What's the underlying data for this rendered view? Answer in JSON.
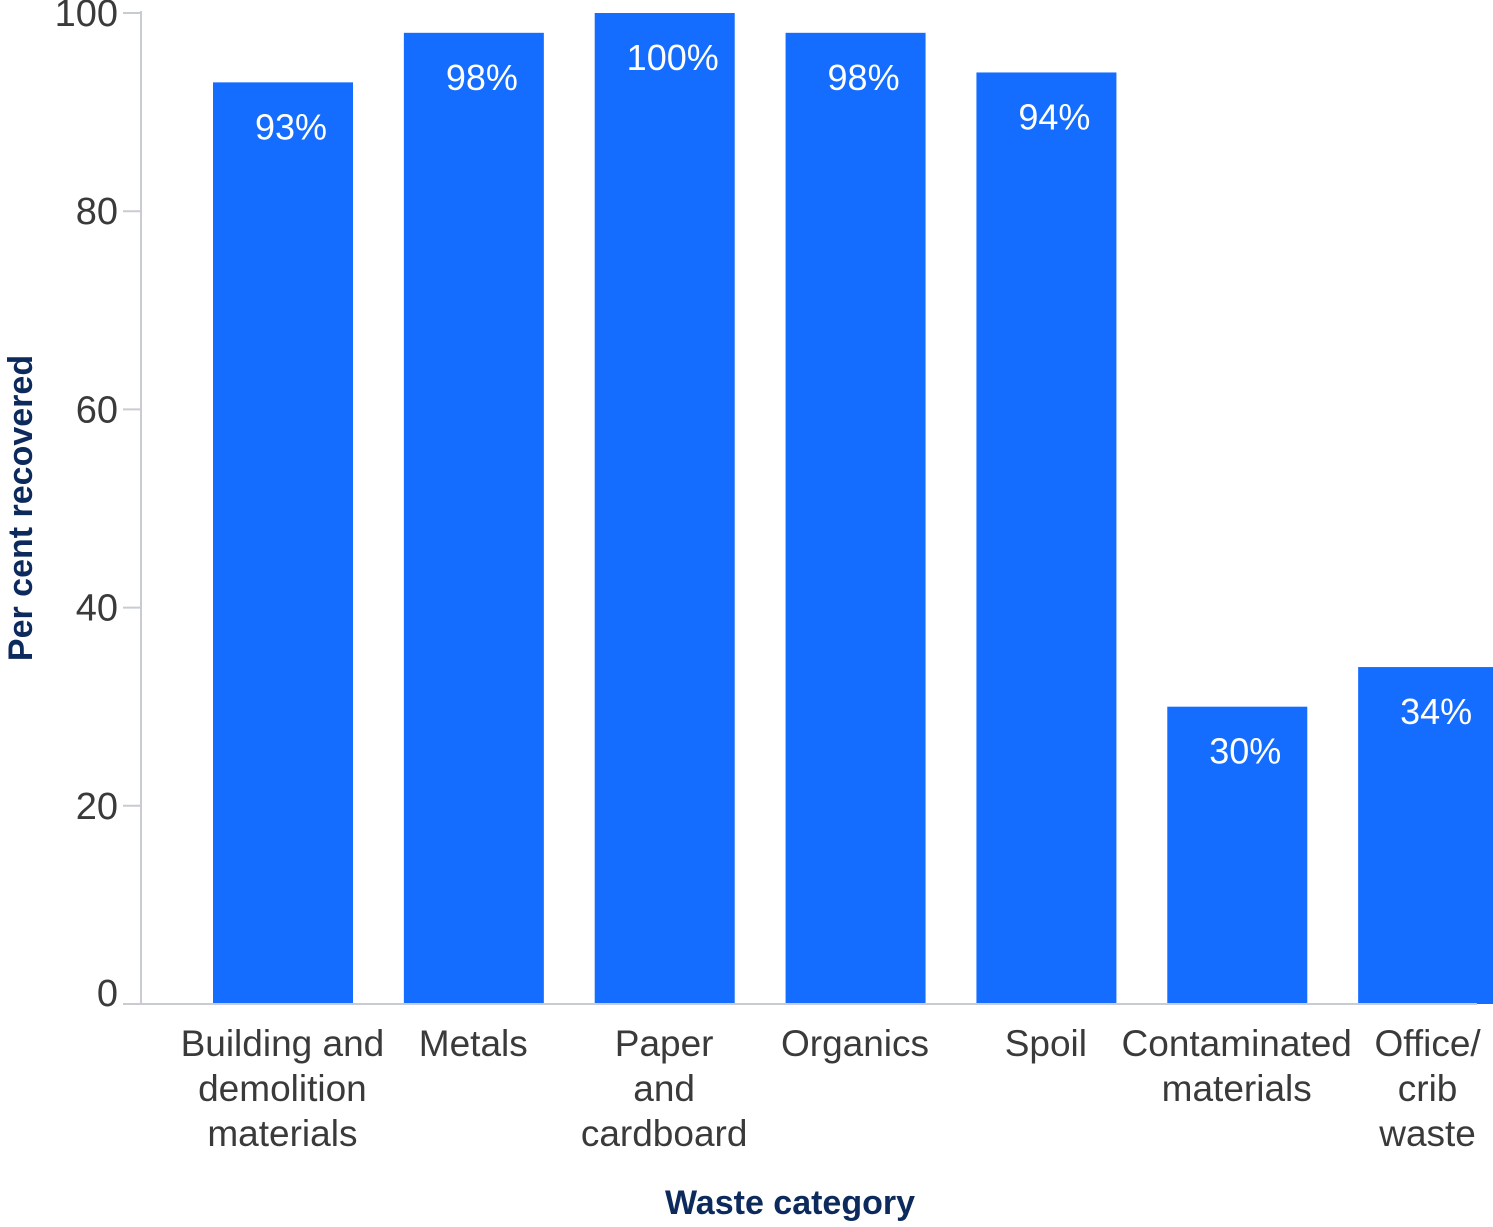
{
  "chart_data": {
    "type": "bar",
    "categories": [
      "Building and demolition materials",
      "Metals",
      "Paper and cardboard",
      "Organics",
      "Spoil",
      "Contaminated materials",
      "Office/ crib waste"
    ],
    "category_lines": [
      [
        "Building and",
        "demolition",
        "materials"
      ],
      [
        "Metals"
      ],
      [
        "Paper",
        "and",
        "cardboard"
      ],
      [
        "Organics"
      ],
      [
        "Spoil"
      ],
      [
        "Contaminated",
        "materials"
      ],
      [
        "Office/",
        "crib",
        "waste"
      ]
    ],
    "values": [
      93,
      98,
      100,
      98,
      94,
      30,
      34
    ],
    "data_labels": [
      "93%",
      "98%",
      "100%",
      "98%",
      "94%",
      "30%",
      "34%"
    ],
    "xlabel": "Waste category",
    "ylabel": "Per cent recovered",
    "ylim": [
      0,
      100
    ],
    "yticks": [
      0,
      20,
      40,
      60,
      80,
      100
    ],
    "grid": false,
    "bar_color": "#156dff",
    "axis_title_color": "#0d2a5c",
    "axis_line_color": "#c8ccd2"
  }
}
